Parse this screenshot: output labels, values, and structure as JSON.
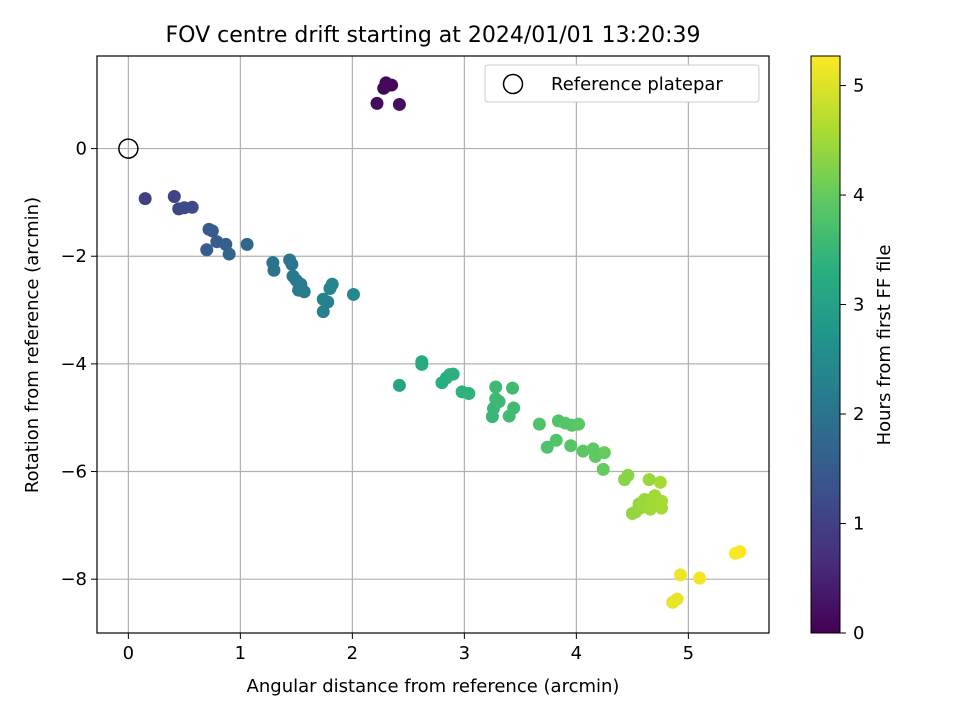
{
  "chart_data": {
    "type": "scatter",
    "title": "FOV centre drift starting at 2024/01/01 13:20:39",
    "xlabel": "Angular distance from reference (arcmin)",
    "ylabel": "Rotation from reference (arcmin)",
    "xlim": [
      -0.28,
      5.72
    ],
    "ylim": [
      -9.0,
      1.72
    ],
    "xticks": [
      0,
      1,
      2,
      3,
      4,
      5
    ],
    "xtick_labels": [
      "0",
      "1",
      "2",
      "3",
      "4",
      "5"
    ],
    "yticks": [
      0,
      -2,
      -4,
      -6,
      -8
    ],
    "ytick_labels": [
      "0",
      "−2",
      "−4",
      "−6",
      "−8"
    ],
    "grid": true,
    "legend": {
      "placement": "upper-right",
      "entries": [
        "Reference platepar"
      ]
    },
    "colorbar": {
      "label": "Hours from first FF file",
      "colormap": "viridis",
      "range": [
        0,
        5.27
      ],
      "ticks": [
        0,
        1,
        2,
        3,
        4,
        5
      ],
      "tick_labels": [
        "0",
        "1",
        "2",
        "3",
        "4",
        "5"
      ]
    },
    "reference_point": {
      "x": 0,
      "y": 0
    },
    "points": [
      {
        "x": 2.3,
        "y": 1.22,
        "hours": 0.05
      },
      {
        "x": 2.35,
        "y": 1.18,
        "hours": 0.08
      },
      {
        "x": 2.28,
        "y": 1.12,
        "hours": 0.1
      },
      {
        "x": 2.31,
        "y": 1.17,
        "hours": 0.12
      },
      {
        "x": 2.22,
        "y": 0.84,
        "hours": 0.15
      },
      {
        "x": 2.42,
        "y": 0.82,
        "hours": 0.2
      },
      {
        "x": 0.15,
        "y": -0.93,
        "hours": 1.0
      },
      {
        "x": 0.41,
        "y": -0.89,
        "hours": 1.05
      },
      {
        "x": 0.45,
        "y": -1.12,
        "hours": 1.1
      },
      {
        "x": 0.5,
        "y": -1.1,
        "hours": 1.15
      },
      {
        "x": 0.57,
        "y": -1.09,
        "hours": 1.2
      },
      {
        "x": 0.72,
        "y": -1.5,
        "hours": 1.45
      },
      {
        "x": 0.75,
        "y": -1.53,
        "hours": 1.5
      },
      {
        "x": 0.79,
        "y": -1.73,
        "hours": 1.55
      },
      {
        "x": 0.87,
        "y": -1.78,
        "hours": 1.6
      },
      {
        "x": 0.7,
        "y": -1.88,
        "hours": 1.55
      },
      {
        "x": 0.9,
        "y": -1.96,
        "hours": 1.65
      },
      {
        "x": 1.06,
        "y": -1.78,
        "hours": 1.75
      },
      {
        "x": 1.29,
        "y": -2.12,
        "hours": 2.0
      },
      {
        "x": 1.3,
        "y": -2.26,
        "hours": 2.0
      },
      {
        "x": 1.44,
        "y": -2.07,
        "hours": 2.05
      },
      {
        "x": 1.46,
        "y": -2.15,
        "hours": 2.05
      },
      {
        "x": 1.47,
        "y": -2.37,
        "hours": 2.1
      },
      {
        "x": 1.5,
        "y": -2.45,
        "hours": 2.1
      },
      {
        "x": 1.54,
        "y": -2.52,
        "hours": 2.15
      },
      {
        "x": 1.52,
        "y": -2.63,
        "hours": 2.15
      },
      {
        "x": 1.57,
        "y": -2.66,
        "hours": 2.2
      },
      {
        "x": 1.74,
        "y": -2.8,
        "hours": 2.3
      },
      {
        "x": 1.78,
        "y": -2.85,
        "hours": 2.3
      },
      {
        "x": 1.74,
        "y": -3.03,
        "hours": 2.3
      },
      {
        "x": 1.8,
        "y": -2.6,
        "hours": 2.35
      },
      {
        "x": 1.82,
        "y": -2.52,
        "hours": 2.4
      },
      {
        "x": 2.01,
        "y": -2.71,
        "hours": 2.45
      },
      {
        "x": 2.42,
        "y": -4.4,
        "hours": 3.1
      },
      {
        "x": 2.62,
        "y": -3.96,
        "hours": 3.2
      },
      {
        "x": 2.62,
        "y": -4.01,
        "hours": 3.2
      },
      {
        "x": 2.8,
        "y": -4.35,
        "hours": 3.3
      },
      {
        "x": 2.84,
        "y": -4.26,
        "hours": 3.3
      },
      {
        "x": 2.87,
        "y": -4.2,
        "hours": 3.3
      },
      {
        "x": 2.9,
        "y": -4.19,
        "hours": 3.35
      },
      {
        "x": 2.98,
        "y": -4.52,
        "hours": 3.35
      },
      {
        "x": 3.04,
        "y": -4.55,
        "hours": 3.4
      },
      {
        "x": 3.25,
        "y": -4.98,
        "hours": 3.5
      },
      {
        "x": 3.26,
        "y": -4.83,
        "hours": 3.5
      },
      {
        "x": 3.28,
        "y": -4.65,
        "hours": 3.55
      },
      {
        "x": 3.28,
        "y": -4.43,
        "hours": 3.55
      },
      {
        "x": 3.31,
        "y": -4.7,
        "hours": 3.55
      },
      {
        "x": 3.4,
        "y": -4.97,
        "hours": 3.6
      },
      {
        "x": 3.43,
        "y": -4.45,
        "hours": 3.6
      },
      {
        "x": 3.44,
        "y": -4.82,
        "hours": 3.6
      },
      {
        "x": 3.67,
        "y": -5.12,
        "hours": 3.75
      },
      {
        "x": 3.74,
        "y": -5.55,
        "hours": 3.75
      },
      {
        "x": 3.82,
        "y": -5.42,
        "hours": 3.8
      },
      {
        "x": 3.84,
        "y": -5.06,
        "hours": 3.8
      },
      {
        "x": 3.9,
        "y": -5.1,
        "hours": 3.85
      },
      {
        "x": 3.95,
        "y": -5.52,
        "hours": 3.85
      },
      {
        "x": 3.96,
        "y": -5.14,
        "hours": 3.85
      },
      {
        "x": 4.02,
        "y": -5.12,
        "hours": 3.9
      },
      {
        "x": 4.06,
        "y": -5.62,
        "hours": 3.9
      },
      {
        "x": 4.15,
        "y": -5.58,
        "hours": 3.95
      },
      {
        "x": 4.17,
        "y": -5.72,
        "hours": 3.95
      },
      {
        "x": 4.25,
        "y": -5.65,
        "hours": 4.0
      },
      {
        "x": 4.24,
        "y": -5.96,
        "hours": 4.0
      },
      {
        "x": 4.43,
        "y": -6.15,
        "hours": 4.3
      },
      {
        "x": 4.46,
        "y": -6.07,
        "hours": 4.3
      },
      {
        "x": 4.5,
        "y": -6.78,
        "hours": 4.4
      },
      {
        "x": 4.53,
        "y": -6.75,
        "hours": 4.4
      },
      {
        "x": 4.56,
        "y": -6.6,
        "hours": 4.4
      },
      {
        "x": 4.58,
        "y": -6.67,
        "hours": 4.45
      },
      {
        "x": 4.61,
        "y": -6.52,
        "hours": 4.45
      },
      {
        "x": 4.63,
        "y": -6.62,
        "hours": 4.45
      },
      {
        "x": 4.65,
        "y": -6.15,
        "hours": 4.45
      },
      {
        "x": 4.66,
        "y": -6.7,
        "hours": 4.5
      },
      {
        "x": 4.68,
        "y": -6.55,
        "hours": 4.5
      },
      {
        "x": 4.7,
        "y": -6.45,
        "hours": 4.5
      },
      {
        "x": 4.72,
        "y": -6.6,
        "hours": 4.5
      },
      {
        "x": 4.75,
        "y": -6.2,
        "hours": 4.55
      },
      {
        "x": 4.76,
        "y": -6.68,
        "hours": 4.55
      },
      {
        "x": 4.76,
        "y": -6.55,
        "hours": 4.55
      },
      {
        "x": 4.86,
        "y": -8.43,
        "hours": 5.1
      },
      {
        "x": 4.9,
        "y": -8.37,
        "hours": 5.1
      },
      {
        "x": 4.93,
        "y": -7.92,
        "hours": 5.15
      },
      {
        "x": 5.1,
        "y": -7.98,
        "hours": 5.2
      },
      {
        "x": 5.42,
        "y": -7.52,
        "hours": 5.25
      },
      {
        "x": 5.46,
        "y": -7.49,
        "hours": 5.27
      }
    ]
  }
}
